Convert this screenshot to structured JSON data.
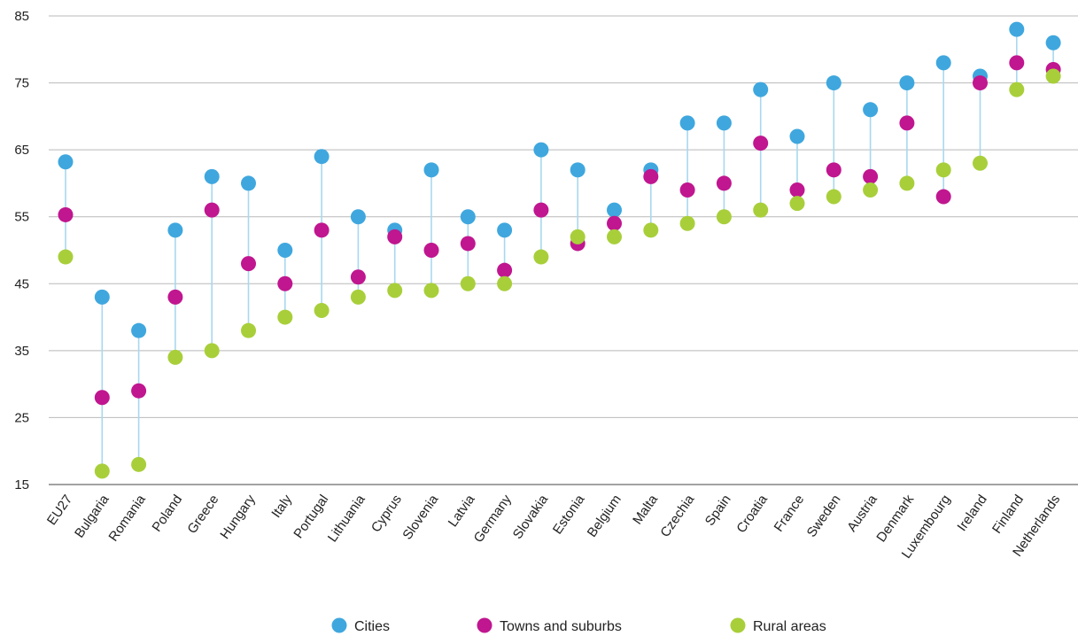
{
  "chart_data": {
    "type": "scatter",
    "title": "",
    "xlabel": "",
    "ylabel": "",
    "ylim": [
      15,
      85
    ],
    "yticks": [
      15,
      25,
      35,
      45,
      55,
      65,
      75,
      85
    ],
    "grid": "horizontal",
    "legend_position": "bottom",
    "connector_color": "#a8d8ef",
    "categories": [
      "EU27",
      "Bulgaria",
      "Romania",
      "Poland",
      "Greece",
      "Hungary",
      "Italy",
      "Portugal",
      "Lithuania",
      "Cyprus",
      "Slovenia",
      "Latvia",
      "Germany",
      "Slovakia",
      "Estonia",
      "Belgium",
      "Malta",
      "Czechia",
      "Spain",
      "Croatia",
      "France",
      "Sweden",
      "Austria",
      "Denmark",
      "Luxembourg",
      "Ireland",
      "Finland",
      "Netherlands"
    ],
    "series": [
      {
        "name": "Cities",
        "color": "#3fa7de",
        "values": [
          63.2,
          43,
          38,
          53,
          61,
          60,
          50,
          64,
          55,
          53,
          62,
          55,
          53,
          65,
          62,
          56,
          62,
          69,
          69,
          74,
          67,
          75,
          71,
          75,
          78,
          76,
          83,
          81
        ]
      },
      {
        "name": "Towns and suburbs",
        "color": "#c0168f",
        "values": [
          55.3,
          28,
          29,
          43,
          56,
          48,
          45,
          53,
          46,
          52,
          50,
          51,
          47,
          56,
          51,
          54,
          61,
          59,
          60,
          66,
          59,
          62,
          61,
          69,
          58,
          75,
          78,
          77
        ]
      },
      {
        "name": "Rural areas",
        "color": "#a8cf3a",
        "values": [
          49,
          17,
          18,
          34,
          35,
          38,
          40,
          41,
          43,
          44,
          44,
          45,
          45,
          49,
          52,
          52,
          53,
          54,
          55,
          56,
          57,
          58,
          59,
          60,
          62,
          63,
          74,
          76
        ]
      }
    ]
  }
}
